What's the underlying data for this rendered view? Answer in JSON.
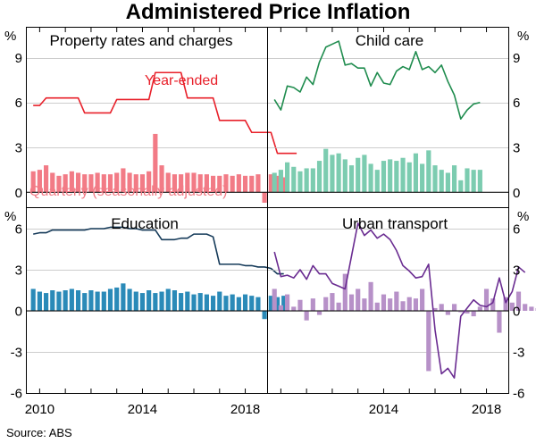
{
  "title": "Administered Price Inflation",
  "source": "Source:   ABS",
  "unit_label": "%",
  "colors": {
    "property": {
      "line": "#e8202a",
      "bar": "#f27b86"
    },
    "childcare": {
      "line": "#1f8c4e",
      "bar": "#7cccb0"
    },
    "education": {
      "line": "#163b5a",
      "bar": "#2a8ab8"
    },
    "transport": {
      "line": "#6a2c91",
      "bar": "#b791c8"
    }
  },
  "annotations": {
    "year_ended": "Year-ended",
    "quarterly": "Quarterly (seasonally adjusted)"
  },
  "chart_data": [
    {
      "type": "bar+line",
      "title": "Property rates and charges",
      "ylim": [
        -1,
        11
      ],
      "yticks": [
        0,
        3,
        6,
        9
      ],
      "x_start": 2009.75,
      "quarterly": [
        1.4,
        1.5,
        1.8,
        1.3,
        1.1,
        1.2,
        1.4,
        1.3,
        1.2,
        1.2,
        1.3,
        1.2,
        1.2,
        1.3,
        1.6,
        1.3,
        1.2,
        1.2,
        1.4,
        3.9,
        1.8,
        1.3,
        1.2,
        1.2,
        1.3,
        1.3,
        1.2,
        1.2,
        1.1,
        1.1,
        1.2,
        1.1,
        1.2,
        1.1,
        1.1,
        1.2,
        -0.7,
        1.2,
        1.1,
        1.0
      ],
      "year_ended_start": 2009.75,
      "year_ended": [
        5.8,
        5.8,
        6.3,
        6.3,
        6.3,
        6.3,
        6.3,
        6.3,
        5.3,
        5.3,
        5.3,
        5.3,
        5.3,
        6.2,
        6.2,
        6.2,
        6.2,
        6.2,
        6.2,
        8.0,
        8.0,
        8.0,
        8.0,
        8.0,
        6.3,
        6.3,
        6.3,
        6.3,
        6.3,
        4.8,
        4.8,
        4.8,
        4.8,
        4.8,
        4.0,
        4.0,
        4.0,
        4.0,
        2.6,
        2.6,
        2.6,
        2.6
      ]
    },
    {
      "type": "bar+line",
      "title": "Child care",
      "ylim": [
        -1,
        11
      ],
      "yticks": [
        0,
        3,
        6,
        9
      ],
      "x_start": 2009.75,
      "quarterly": [
        1.3,
        1.5,
        2.0,
        1.7,
        1.4,
        1.6,
        1.6,
        2.1,
        2.9,
        2.5,
        2.6,
        2.2,
        1.8,
        2.3,
        2.5,
        1.9,
        1.5,
        2.1,
        2.2,
        2.1,
        2.3,
        2.0,
        2.6,
        1.9,
        2.8,
        1.8,
        1.5,
        1.3,
        1.8,
        0.8,
        1.6,
        1.5,
        1.5
      ],
      "year_ended_start": 2009.75,
      "year_ended": [
        6.2,
        5.5,
        7.1,
        7.0,
        6.7,
        7.7,
        7.2,
        8.7,
        9.7,
        9.9,
        10.1,
        8.5,
        8.6,
        8.3,
        8.3,
        7.1,
        8.0,
        7.3,
        7.2,
        8.1,
        8.4,
        8.2,
        9.4,
        8.2,
        8.4,
        8.0,
        8.5,
        7.4,
        6.5,
        4.9,
        5.5,
        5.9,
        6.0
      ]
    },
    {
      "type": "bar+line",
      "title": "Education",
      "ylim": [
        -6,
        7.5
      ],
      "yticks": [
        -6,
        -3,
        0,
        3,
        6
      ],
      "x_start": 2009.75,
      "quarterly": [
        1.6,
        1.4,
        1.3,
        1.5,
        1.4,
        1.5,
        1.6,
        1.5,
        1.3,
        1.5,
        1.4,
        1.4,
        1.6,
        1.7,
        2.0,
        1.6,
        1.4,
        1.3,
        1.5,
        1.3,
        1.4,
        1.6,
        1.5,
        1.3,
        1.4,
        1.2,
        1.3,
        1.2,
        1.1,
        1.4,
        1.1,
        1.2,
        1.0,
        1.2,
        1.1,
        1.0,
        -0.6,
        1.1,
        1.0,
        1.1
      ],
      "year_ended_start": 2009.75,
      "year_ended": [
        5.6,
        5.7,
        5.7,
        5.9,
        5.9,
        5.9,
        5.9,
        5.9,
        5.9,
        6.0,
        6.0,
        6.0,
        6.1,
        6.1,
        6.1,
        6.0,
        6.0,
        5.9,
        5.9,
        5.9,
        5.2,
        5.2,
        5.2,
        5.3,
        5.3,
        5.6,
        5.6,
        5.6,
        5.4,
        3.4,
        3.4,
        3.4,
        3.4,
        3.3,
        3.3,
        3.2,
        3.2,
        3.1,
        2.7,
        2.7
      ]
    },
    {
      "type": "bar+line",
      "title": "Urban transport",
      "ylim": [
        -6,
        7.5
      ],
      "yticks": [
        -6,
        -3,
        0,
        3,
        6
      ],
      "x_start": 2009.75,
      "quarterly": [
        1.6,
        0.4,
        1.2,
        0.3,
        0.8,
        -0.7,
        0.9,
        -0.3,
        1.0,
        1.3,
        0.6,
        2.7,
        1.2,
        1.6,
        0.9,
        2.1,
        0.6,
        1.2,
        0.9,
        1.4,
        0.7,
        1.0,
        0.9,
        1.6,
        -4.4,
        0.2,
        0.5,
        -0.3,
        0.5,
        -0.1,
        -0.2,
        -0.4,
        0.3,
        1.6,
        0.9,
        -1.6,
        1.0,
        0.6,
        1.4,
        0.5,
        0.3,
        0.2
      ],
      "year_ended_start": 2009.75,
      "year_ended": [
        4.3,
        2.5,
        2.6,
        2.4,
        3.0,
        2.3,
        3.3,
        2.7,
        2.7,
        2.0,
        1.8,
        1.6,
        4.0,
        6.4,
        5.5,
        5.9,
        5.3,
        5.6,
        5.2,
        4.4,
        3.3,
        2.9,
        2.4,
        2.5,
        3.4,
        -1.4,
        -4.6,
        -4.2,
        -4.9,
        -0.4,
        0.2,
        0.8,
        0.4,
        0.3,
        0.6,
        2.4,
        0.6,
        1.4,
        3.2,
        2.8
      ]
    }
  ],
  "x_axis": {
    "range": [
      2009.5,
      2018.85
    ],
    "left_tick_labels": [
      "2010",
      "2014",
      "2018"
    ],
    "right_tick_labels": [
      "2014",
      "2018"
    ]
  }
}
